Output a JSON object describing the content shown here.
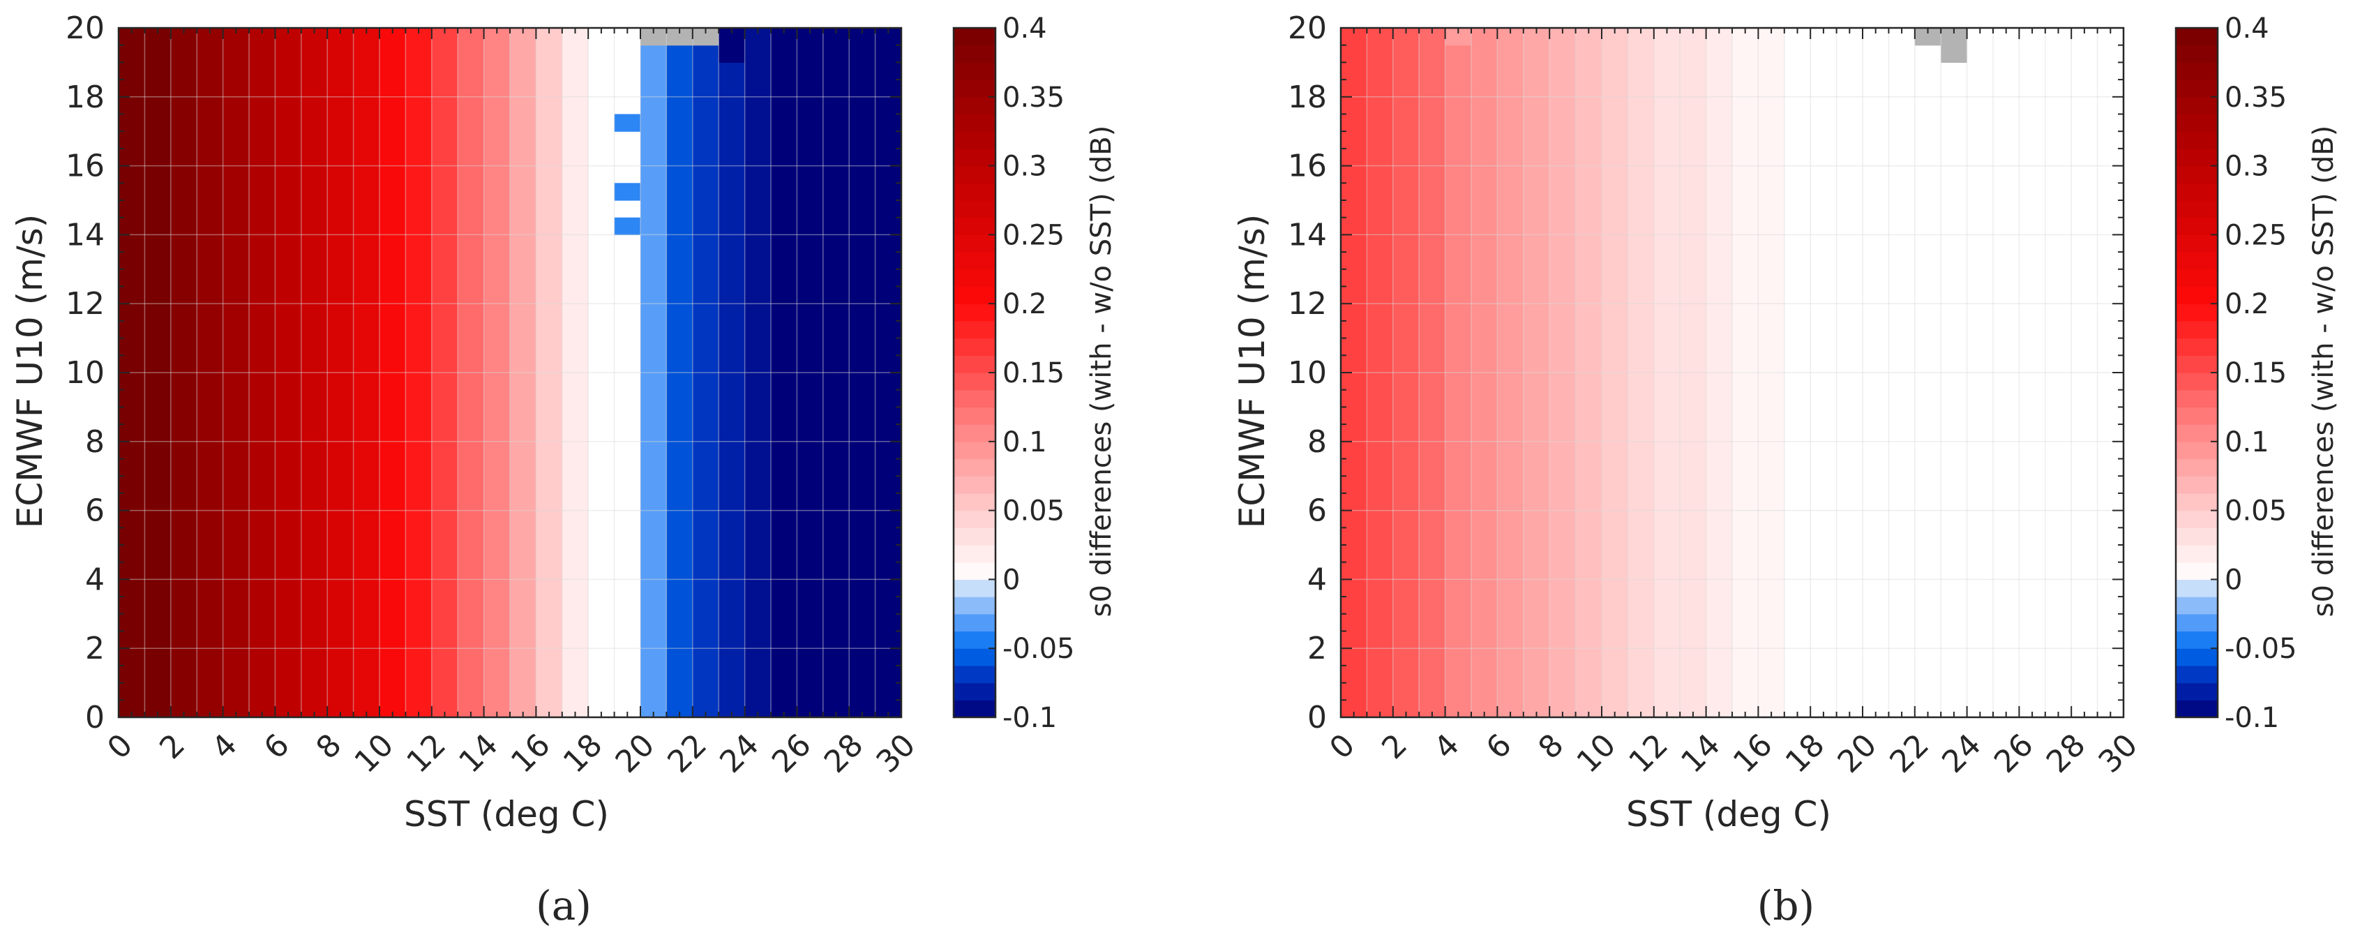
{
  "figure": {
    "panel_labels": [
      "(a)",
      "(b)"
    ]
  },
  "colors": {
    "axis": "#262626",
    "grid": "#d9d9d9",
    "no_data": "#b3b3b3"
  },
  "chart_data": [
    {
      "type": "heatmap",
      "panel": "(a)",
      "xlabel": "SST (deg C)",
      "ylabel": "ECMWF U10 (m/s)",
      "colorbar_label": "s0 differences (with - w/o SST) (dB)",
      "xlim": [
        0,
        30
      ],
      "ylim": [
        0,
        20
      ],
      "clim": [
        -0.1,
        0.4
      ],
      "x_ticks": [
        "0",
        "2",
        "4",
        "6",
        "8",
        "10",
        "12",
        "14",
        "16",
        "18",
        "20",
        "22",
        "24",
        "26",
        "28",
        "30"
      ],
      "y_ticks": [
        "0",
        "2",
        "4",
        "6",
        "8",
        "10",
        "12",
        "14",
        "16",
        "18",
        "20"
      ],
      "colorbar_ticks": [
        "-0.1",
        "-0.05",
        "0",
        "0.05",
        "0.1",
        "0.15",
        "0.2",
        "0.25",
        "0.3",
        "0.35",
        "0.4"
      ],
      "sst_bins": [
        0,
        1,
        2,
        3,
        4,
        5,
        6,
        7,
        8,
        9,
        10,
        11,
        12,
        13,
        14,
        15,
        16,
        17,
        18,
        19,
        20,
        21,
        22,
        23,
        24,
        25,
        26,
        27,
        28,
        29
      ],
      "column_values": [
        0.4,
        0.4,
        0.38,
        0.36,
        0.34,
        0.32,
        0.3,
        0.28,
        0.26,
        0.24,
        0.21,
        0.19,
        0.16,
        0.13,
        0.11,
        0.08,
        0.05,
        0.02,
        0.0,
        0.0,
        -0.03,
        -0.06,
        -0.07,
        -0.08,
        -0.09,
        -0.1,
        -0.1,
        -0.1,
        -0.1,
        -0.1
      ],
      "cell_overrides": [
        {
          "sst": 19,
          "u10": 17,
          "value": -0.04
        },
        {
          "sst": 19,
          "u10": 15,
          "value": -0.04
        },
        {
          "sst": 19,
          "u10": 14,
          "value": -0.04
        },
        {
          "sst": 23,
          "u10": 19,
          "value": -0.1
        },
        {
          "sst": 23,
          "u10": 19.5,
          "value": -0.1
        }
      ],
      "no_data_cells": [
        {
          "sst": 20,
          "u10": 19.5
        },
        {
          "sst": 21,
          "u10": 19.5
        },
        {
          "sst": 22,
          "u10": 19.5
        }
      ]
    },
    {
      "type": "heatmap",
      "panel": "(b)",
      "xlabel": "SST (deg C)",
      "ylabel": "ECMWF U10 (m/s)",
      "colorbar_label": "s0 differences (with - w/o SST) (dB)",
      "xlim": [
        0,
        30
      ],
      "ylim": [
        0,
        20
      ],
      "clim": [
        -0.1,
        0.4
      ],
      "x_ticks": [
        "0",
        "2",
        "4",
        "6",
        "8",
        "10",
        "12",
        "14",
        "16",
        "18",
        "20",
        "22",
        "24",
        "26",
        "28",
        "30"
      ],
      "y_ticks": [
        "0",
        "2",
        "4",
        "6",
        "8",
        "10",
        "12",
        "14",
        "16",
        "18",
        "20"
      ],
      "colorbar_ticks": [
        "-0.1",
        "-0.05",
        "0",
        "0.05",
        "0.1",
        "0.15",
        "0.2",
        "0.25",
        "0.3",
        "0.35",
        "0.4"
      ],
      "sst_bins": [
        0,
        1,
        2,
        3,
        4,
        5,
        6,
        7,
        8,
        9,
        10,
        11,
        12,
        13,
        14,
        15,
        16,
        17,
        18,
        19,
        20,
        21,
        22,
        23,
        24,
        25,
        26,
        27,
        28,
        29
      ],
      "column_values": [
        0.16,
        0.15,
        0.14,
        0.13,
        0.11,
        0.1,
        0.09,
        0.08,
        0.07,
        0.06,
        0.05,
        0.04,
        0.03,
        0.03,
        0.02,
        0.01,
        0.01,
        0.0,
        0.0,
        0.0,
        0.0,
        0.0,
        0.0,
        0.0,
        0.0,
        0.0,
        0.0,
        0.0,
        0.0,
        0.0
      ],
      "cell_overrides": [
        {
          "sst": 4,
          "u10": 19.5,
          "value": 0.09
        }
      ],
      "no_data_cells": [
        {
          "sst": 22,
          "u10": 19.5
        },
        {
          "sst": 23,
          "u10": 19.5
        },
        {
          "sst": 23,
          "u10": 19
        }
      ]
    }
  ]
}
